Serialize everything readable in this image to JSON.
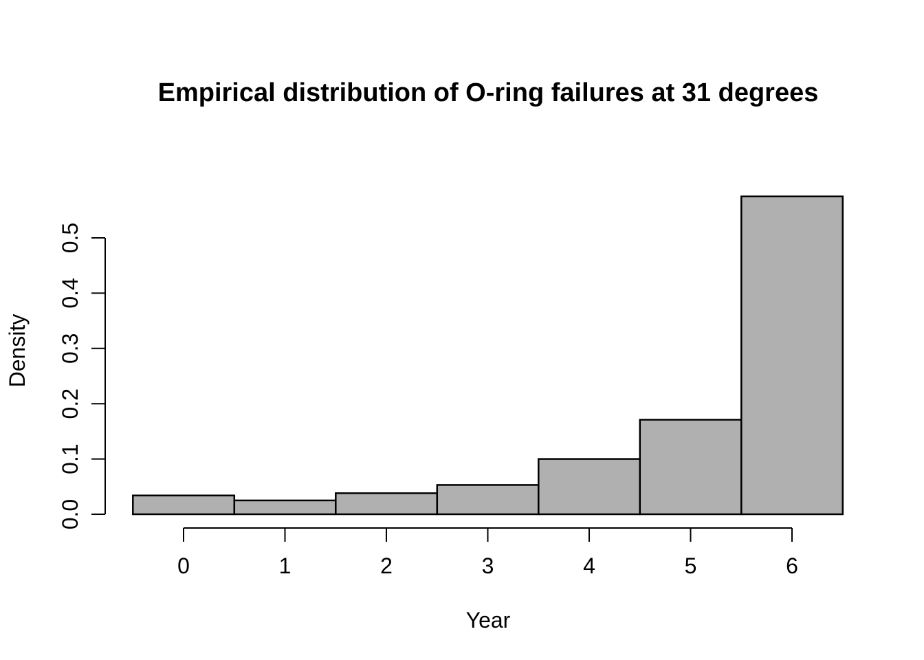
{
  "figure": {
    "background": "#ffffff"
  },
  "chart_data": {
    "type": "bar",
    "subtype": "histogram-density",
    "title": "Empirical distribution of O-ring failures at 31 degrees",
    "xlabel": "Year",
    "ylabel": "Density",
    "categories": [
      0,
      1,
      2,
      3,
      4,
      5,
      6
    ],
    "values": [
      0.034,
      0.025,
      0.038,
      0.053,
      0.1,
      0.171,
      0.575
    ],
    "bar_width_units": 1,
    "x_tick_labels": [
      "0",
      "1",
      "2",
      "3",
      "4",
      "5",
      "6"
    ],
    "y_tick_labels": [
      "0.0",
      "0.1",
      "0.2",
      "0.3",
      "0.4",
      "0.5"
    ],
    "y_tick_values": [
      0.0,
      0.1,
      0.2,
      0.3,
      0.4,
      0.5
    ],
    "xlim": [
      -0.5,
      6.5
    ],
    "ylim": [
      0,
      0.575
    ],
    "grid": false,
    "legend": null,
    "colors": {
      "bar_fill": "#b0b0b0",
      "bar_stroke": "#000000",
      "axis": "#000000",
      "text": "#000000",
      "background": "#ffffff"
    }
  }
}
